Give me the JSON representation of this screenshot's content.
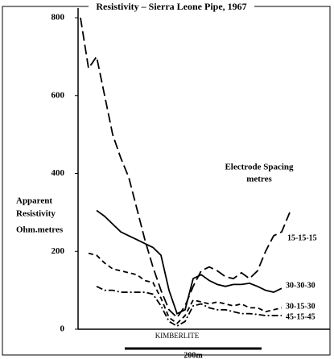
{
  "chart_data": {
    "type": "line",
    "title": "Resistivity – Sierra Leone Pipe, 1967",
    "y_label": [
      "Apparent",
      "Resistivity",
      "Ohm.metres"
    ],
    "legend_title": [
      "Electrode Spacing",
      "metres"
    ],
    "annotations": [
      "KIMBERLITE",
      "200m"
    ],
    "categories": [
      null,
      null,
      null,
      null,
      null,
      null,
      null,
      null,
      null,
      null,
      null,
      null,
      null,
      null,
      null,
      null,
      null,
      null,
      null,
      null,
      null,
      null,
      null,
      null,
      null,
      null,
      null
    ],
    "series": [
      {
        "name": "15-15-15",
        "color": "#000000",
        "dash": "12,5",
        "values": [
          800,
          670,
          700,
          600,
          500,
          440,
          390,
          310,
          230,
          160,
          100,
          50,
          30,
          60,
          110,
          150,
          160,
          150,
          135,
          130,
          145,
          130,
          150,
          200,
          240,
          250,
          300
        ]
      },
      {
        "name": "30-30-30",
        "color": "#000000",
        "dash": "none",
        "values": [
          null,
          null,
          305,
          290,
          270,
          250,
          240,
          230,
          220,
          210,
          190,
          100,
          40,
          50,
          130,
          140,
          125,
          115,
          110,
          115,
          115,
          118,
          110,
          100,
          95,
          105,
          null
        ]
      },
      {
        "name": "30-15-30",
        "color": "#000000",
        "dash": "6,4",
        "values": [
          null,
          195,
          190,
          170,
          155,
          150,
          145,
          140,
          125,
          120,
          80,
          30,
          15,
          35,
          75,
          70,
          65,
          70,
          65,
          60,
          65,
          55,
          55,
          45,
          50,
          55,
          null
        ]
      },
      {
        "name": "45-15-45",
        "color": "#000000",
        "dash": "8,3,2,3",
        "values": [
          null,
          null,
          110,
          100,
          100,
          95,
          95,
          95,
          95,
          90,
          60,
          20,
          8,
          20,
          60,
          65,
          55,
          50,
          50,
          45,
          40,
          40,
          38,
          35,
          35,
          35,
          null
        ]
      }
    ],
    "ylim": [
      0,
      800
    ],
    "yticks": [
      0,
      200,
      400,
      600,
      800
    ],
    "grid": false
  }
}
